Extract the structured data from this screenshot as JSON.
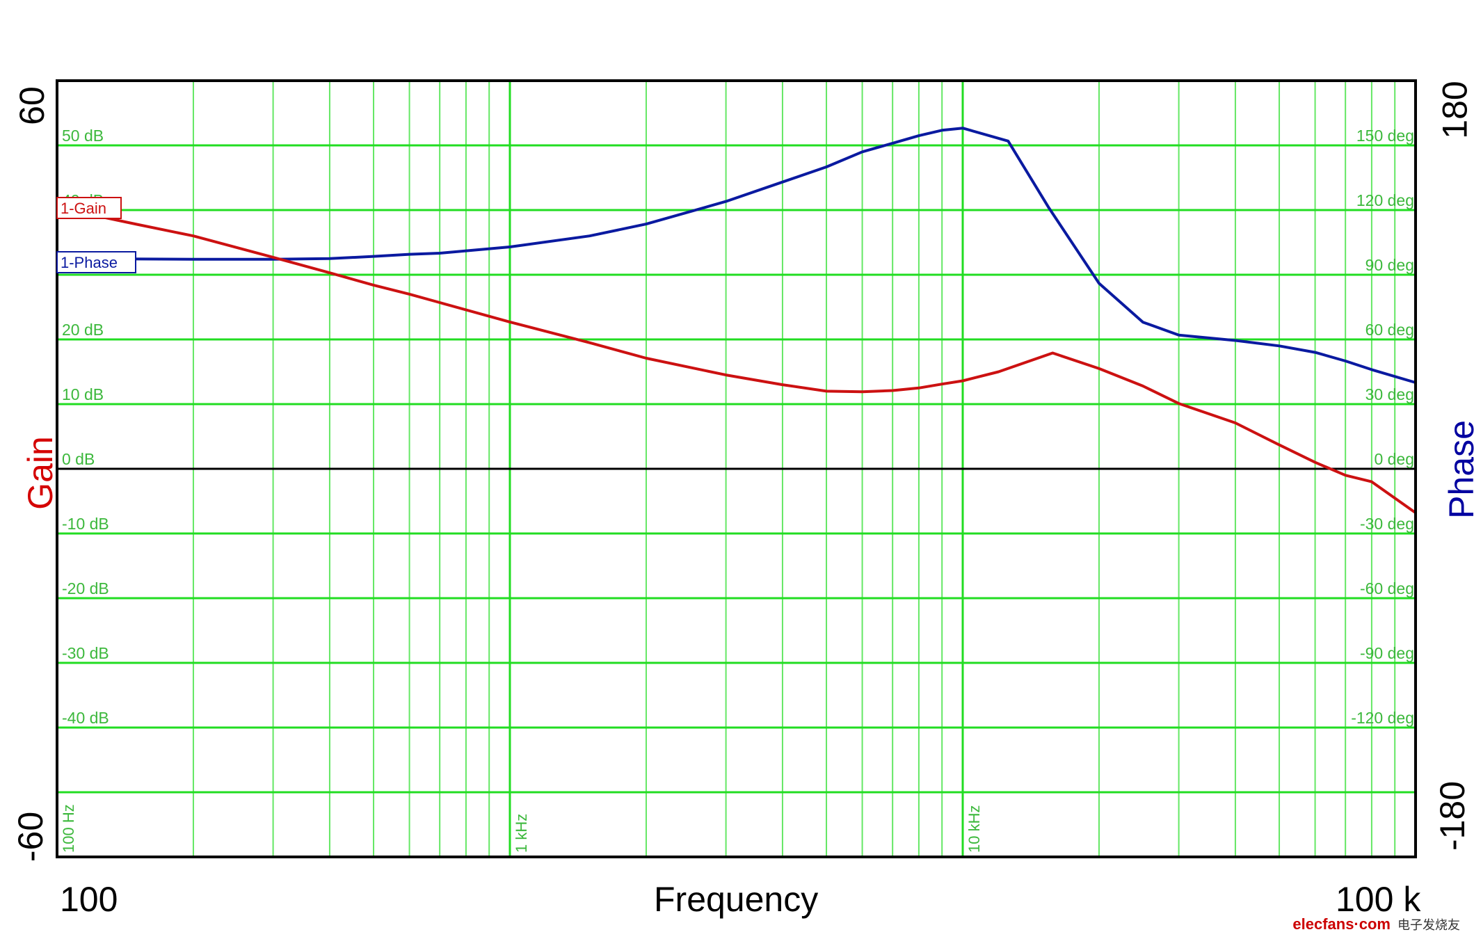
{
  "chart_data": {
    "type": "line",
    "title": "",
    "xlabel": "Frequency",
    "xscale": "log",
    "xlim": [
      100,
      100000
    ],
    "x_end_labels": [
      "100",
      "100 k"
    ],
    "x_decade_labels": [
      "100 Hz",
      "1 kHz",
      "10 kHz"
    ],
    "left_axis": {
      "label": "Gain",
      "color": "#d40000",
      "lim": [
        -60,
        60
      ],
      "end_labels": [
        "60",
        "-60"
      ],
      "ticks": [
        50,
        40,
        30,
        20,
        10,
        0,
        -10,
        -20,
        -30,
        -40,
        -50
      ],
      "tick_labels": [
        "50 dB",
        "40 dB",
        "30 dB",
        "20 dB",
        "10 dB",
        "0 dB",
        "-10 dB",
        "-20 dB",
        "-30 dB",
        "-40 dB",
        ""
      ]
    },
    "right_axis": {
      "label": "Phase",
      "color": "#0000a0",
      "lim": [
        -180,
        180
      ],
      "end_labels": [
        "180",
        "-180"
      ],
      "ticks": [
        150,
        120,
        90,
        60,
        30,
        0,
        -30,
        -60,
        -90,
        -120,
        -150
      ],
      "tick_labels": [
        "150 deg",
        "120 deg",
        "90 deg",
        "60 deg",
        "30 deg",
        "0 deg",
        "-30 deg",
        "-60 deg",
        "-90 deg",
        "-120 deg",
        ""
      ]
    },
    "grid": true,
    "grid_color": "#22dd22",
    "legend": [
      {
        "name": "1-Gain",
        "color": "#cc1111"
      },
      {
        "name": "1-Phase",
        "color": "#0a1aa0"
      }
    ],
    "series": [
      {
        "name": "1-Gain",
        "axis": "left",
        "unit": "dB",
        "color": "#cc1111",
        "x": [
          113,
          150,
          200,
          300,
          400,
          500,
          600,
          700,
          1000,
          1500,
          2000,
          3000,
          4000,
          5000,
          6000,
          7000,
          8000,
          9000,
          10000,
          12000,
          15800,
          20000,
          25000,
          30000,
          40000,
          50000,
          60000,
          70000,
          80000,
          100000
        ],
        "values": [
          39.6,
          37.8,
          36.0,
          32.7,
          30.3,
          28.4,
          27.0,
          25.7,
          22.7,
          19.5,
          17.1,
          14.5,
          13.0,
          12.0,
          11.9,
          12.1,
          12.5,
          13.1,
          13.6,
          15.0,
          17.9,
          15.5,
          12.8,
          10.1,
          7.1,
          3.7,
          1.0,
          -1.0,
          -2.0,
          -6.8
        ]
      },
      {
        "name": "1-Phase",
        "axis": "right",
        "unit": "deg",
        "color": "#0a1aa0",
        "x": [
          122,
          130,
          200,
          300,
          400,
          500,
          600,
          700,
          1000,
          1500,
          2000,
          3000,
          4000,
          5000,
          6000,
          7000,
          8000,
          9000,
          10000,
          12600,
          15500,
          20000,
          25000,
          30000,
          40000,
          50000,
          60000,
          70000,
          80000,
          100000
        ],
        "values": [
          100,
          97.4,
          97.2,
          97.2,
          97.5,
          98.5,
          99.5,
          100,
          102.9,
          108,
          113.5,
          124,
          133,
          140,
          147,
          151,
          154.5,
          157,
          158,
          152,
          121,
          86,
          68,
          62,
          59.5,
          57,
          54,
          50,
          46,
          40
        ]
      }
    ]
  },
  "watermark": {
    "brand": "elecfans·com",
    "cn": "电子发烧友"
  }
}
